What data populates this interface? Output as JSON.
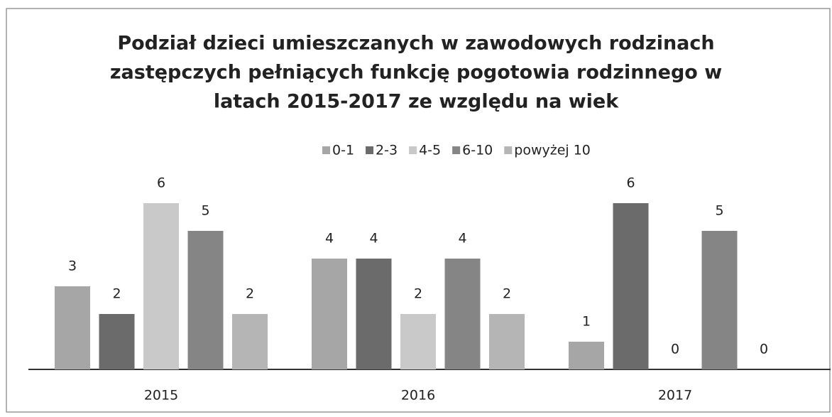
{
  "chart_data": {
    "type": "bar",
    "title": [
      "Podział dzieci umieszczanych w zawodowych rodzinach",
      "zastępczych pełniących funkcję pogotowia rodzinnego w",
      "latach 2015-2017 ze względu na wiek"
    ],
    "categories": [
      "2015",
      "2016",
      "2017"
    ],
    "series": [
      {
        "name": "0-1",
        "color": "#a6a6a6",
        "values": [
          3,
          4,
          1
        ]
      },
      {
        "name": "2-3",
        "color": "#6b6b6b",
        "values": [
          2,
          4,
          6
        ]
      },
      {
        "name": "4-5",
        "color": "#c9c9c9",
        "values": [
          6,
          2,
          0
        ]
      },
      {
        "name": "6-10",
        "color": "#858585",
        "values": [
          5,
          4,
          5
        ]
      },
      {
        "name": "powyżej 10",
        "color": "#b5b5b5",
        "values": [
          2,
          2,
          0
        ]
      }
    ],
    "ylim": [
      0,
      6
    ],
    "legend": "top",
    "data_labels": true
  }
}
